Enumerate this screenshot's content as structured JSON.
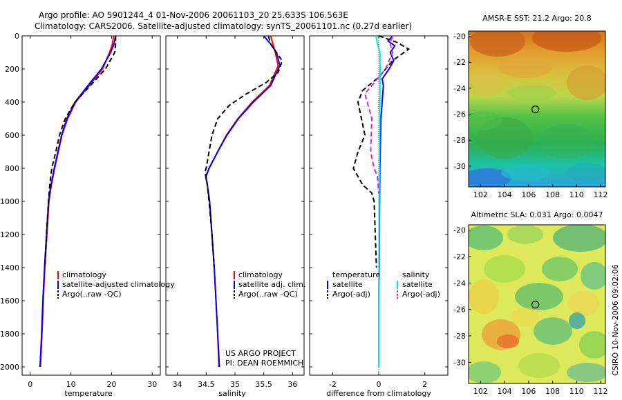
{
  "header": {
    "line1": "Argo profile: AO 5901244_4 01-Nov-2006 20061103_20 25.633S 106.563E",
    "line2": "Climatology: CARS2006. Satellite-adjusted climatology: synTS_20061101.nc (0.27d earlier)"
  },
  "footer": {
    "project": "US ARGO PROJECT",
    "pi": "PI: DEAN ROEMMICH",
    "stamp": "CSIRO 10-Nov-2006 09:02:06"
  },
  "colors": {
    "climatology": "#ff0000",
    "satellite": "#0000ff",
    "argo": "#000000",
    "sal_satellite": "#00e5e5",
    "sal_argo": "#e020d0"
  },
  "chart_data": [
    {
      "type": "line",
      "title": "",
      "xlabel": "temperature",
      "ylabel": "",
      "xlim": [
        -2,
        32
      ],
      "ylim": [
        0,
        2050
      ],
      "y_inverted": true,
      "x_ticks": [
        "0",
        "10",
        "20",
        "30"
      ],
      "y_ticks": [
        "0",
        "200",
        "400",
        "600",
        "800",
        "1000",
        "1200",
        "1400",
        "1600",
        "1800",
        "2000"
      ],
      "legend": {
        "placement": "bottom-right",
        "entries": [
          "climatology",
          "satellite-adjusted climatology",
          "Argo(..raw -QC)"
        ]
      },
      "series": [
        {
          "name": "climatology",
          "style": "solid",
          "color": "#ff0000",
          "points": [
            [
              20.5,
              0
            ],
            [
              20.2,
              50
            ],
            [
              19.5,
              100
            ],
            [
              17.8,
              200
            ],
            [
              14.5,
              300
            ],
            [
              11.2,
              400
            ],
            [
              9.2,
              500
            ],
            [
              7.8,
              600
            ],
            [
              6.9,
              700
            ],
            [
              6.0,
              800
            ],
            [
              5.2,
              900
            ],
            [
              4.6,
              1000
            ],
            [
              4.1,
              1200
            ],
            [
              3.6,
              1400
            ],
            [
              3.2,
              1600
            ],
            [
              2.9,
              1800
            ],
            [
              2.5,
              2000
            ]
          ]
        },
        {
          "name": "satellite-adjusted climatology",
          "style": "solid",
          "color": "#0000ff",
          "points": [
            [
              21.0,
              0
            ],
            [
              20.6,
              50
            ],
            [
              19.8,
              100
            ],
            [
              17.5,
              200
            ],
            [
              14.2,
              300
            ],
            [
              11.0,
              400
            ],
            [
              9.0,
              500
            ],
            [
              7.7,
              600
            ],
            [
              6.8,
              700
            ],
            [
              5.9,
              800
            ],
            [
              5.1,
              900
            ],
            [
              4.5,
              1000
            ],
            [
              4.0,
              1200
            ],
            [
              3.5,
              1400
            ],
            [
              3.1,
              1600
            ],
            [
              2.8,
              1800
            ],
            [
              2.4,
              2000
            ]
          ]
        },
        {
          "name": "Argo(..raw -QC)",
          "style": "dashed",
          "color": "#000000",
          "points": [
            [
              21.0,
              0
            ],
            [
              21.0,
              50
            ],
            [
              20.8,
              100
            ],
            [
              18.5,
              200
            ],
            [
              14.8,
              300
            ],
            [
              11.0,
              400
            ],
            [
              8.6,
              500
            ],
            [
              7.2,
              600
            ],
            [
              6.3,
              700
            ],
            [
              5.3,
              800
            ],
            [
              4.8,
              900
            ],
            [
              4.5,
              1000
            ],
            [
              4.0,
              1200
            ],
            [
              3.6,
              1400
            ]
          ]
        }
      ]
    },
    {
      "type": "line",
      "title": "",
      "xlabel": "salinity",
      "ylabel": "",
      "xlim": [
        33.8,
        36.2
      ],
      "ylim": [
        0,
        2050
      ],
      "y_inverted": true,
      "x_ticks": [
        "34",
        "34.5",
        "35",
        "35.5",
        "36"
      ],
      "legend": {
        "placement": "bottom-right",
        "entries": [
          "climatology",
          "satellite adj. clim.",
          "Argo(..raw -QC)"
        ]
      },
      "series": [
        {
          "name": "climatology",
          "style": "solid",
          "color": "#ff0000",
          "points": [
            [
              35.62,
              0
            ],
            [
              35.66,
              50
            ],
            [
              35.7,
              100
            ],
            [
              35.75,
              180
            ],
            [
              35.6,
              300
            ],
            [
              35.3,
              400
            ],
            [
              35.05,
              500
            ],
            [
              34.85,
              600
            ],
            [
              34.7,
              700
            ],
            [
              34.55,
              800
            ],
            [
              34.5,
              850
            ],
            [
              34.52,
              900
            ],
            [
              34.56,
              1000
            ],
            [
              34.6,
              1200
            ],
            [
              34.64,
              1400
            ],
            [
              34.67,
              1600
            ],
            [
              34.7,
              1800
            ],
            [
              34.72,
              2000
            ]
          ]
        },
        {
          "name": "satellite adj. clim.",
          "style": "solid",
          "color": "#0000ff",
          "points": [
            [
              35.5,
              0
            ],
            [
              35.62,
              50
            ],
            [
              35.72,
              100
            ],
            [
              35.78,
              180
            ],
            [
              35.62,
              300
            ],
            [
              35.32,
              400
            ],
            [
              35.06,
              500
            ],
            [
              34.86,
              600
            ],
            [
              34.7,
              700
            ],
            [
              34.55,
              800
            ],
            [
              34.49,
              850
            ],
            [
              34.52,
              900
            ],
            [
              34.56,
              1000
            ],
            [
              34.6,
              1200
            ],
            [
              34.64,
              1400
            ],
            [
              34.67,
              1600
            ],
            [
              34.7,
              1800
            ],
            [
              34.73,
              2000
            ]
          ]
        },
        {
          "name": "Argo(..raw -QC)",
          "style": "dashed",
          "color": "#000000",
          "points": [
            [
              35.58,
              0
            ],
            [
              35.62,
              50
            ],
            [
              35.82,
              150
            ],
            [
              35.75,
              220
            ],
            [
              35.55,
              280
            ],
            [
              35.2,
              350
            ],
            [
              34.9,
              420
            ],
            [
              34.7,
              500
            ],
            [
              34.6,
              600
            ],
            [
              34.55,
              700
            ],
            [
              34.5,
              800
            ],
            [
              34.48,
              820
            ],
            [
              34.52,
              900
            ],
            [
              34.55,
              1000
            ],
            [
              34.6,
              1200
            ],
            [
              34.64,
              1400
            ]
          ]
        }
      ]
    },
    {
      "type": "line",
      "title": "",
      "xlabel": "difference from climatology",
      "ylabel": "",
      "xlim": [
        -3,
        3
      ],
      "ylim": [
        0,
        2050
      ],
      "y_inverted": true,
      "x_ticks": [
        "-2",
        "0",
        "2"
      ],
      "legend": {
        "placement": "bottom",
        "temperature_header": "temperature",
        "salinity_header": "salinity",
        "entries": [
          "satellite",
          "Argo(-adj)",
          "satellite",
          "Argo(-adj)"
        ]
      },
      "series": [
        {
          "name": "temperature satellite",
          "style": "solid",
          "color": "#0000ff",
          "points": [
            [
              0.6,
              0
            ],
            [
              0.4,
              30
            ],
            [
              0.7,
              60
            ],
            [
              0.5,
              100
            ],
            [
              0.65,
              150
            ],
            [
              0.45,
              200
            ],
            [
              0.15,
              260
            ],
            [
              0.2,
              300
            ],
            [
              0.1,
              500
            ],
            [
              0.05,
              800
            ],
            [
              0.04,
              1000
            ],
            [
              0.02,
              1400
            ],
            [
              0.0,
              1600
            ],
            [
              0.0,
              2000
            ]
          ]
        },
        {
          "name": "temperature Argo(-adj)",
          "style": "dashed",
          "color": "#000000",
          "points": [
            [
              0.0,
              0
            ],
            [
              0.8,
              40
            ],
            [
              1.3,
              80
            ],
            [
              0.6,
              150
            ],
            [
              0.0,
              250
            ],
            [
              -0.7,
              330
            ],
            [
              -0.9,
              400
            ],
            [
              -0.75,
              500
            ],
            [
              -0.6,
              600
            ],
            [
              -0.9,
              700
            ],
            [
              -1.1,
              800
            ],
            [
              -0.7,
              900
            ],
            [
              -0.3,
              950
            ],
            [
              -0.2,
              1000
            ],
            [
              -0.15,
              1200
            ],
            [
              -0.1,
              1400
            ]
          ]
        },
        {
          "name": "salinity satellite",
          "style": "solid",
          "color": "#00e5e5",
          "points": [
            [
              -0.12,
              0
            ],
            [
              -0.05,
              50
            ],
            [
              0.05,
              100
            ],
            [
              0.06,
              200
            ],
            [
              0.05,
              400
            ],
            [
              0.04,
              700
            ],
            [
              0.02,
              1000
            ],
            [
              0.01,
              1400
            ],
            [
              0.0,
              1700
            ],
            [
              0.0,
              2000
            ]
          ]
        },
        {
          "name": "salinity Argo(-adj)",
          "style": "dashed",
          "color": "#e020d0",
          "points": [
            [
              0.6,
              0
            ],
            [
              0.5,
              50
            ],
            [
              0.6,
              100
            ],
            [
              0.3,
              200
            ],
            [
              -0.3,
              300
            ],
            [
              -0.6,
              350
            ],
            [
              -0.4,
              450
            ],
            [
              -0.3,
              500
            ],
            [
              -0.35,
              700
            ],
            [
              -0.2,
              800
            ],
            [
              -0.05,
              850
            ],
            [
              0.0,
              950
            ]
          ]
        }
      ]
    },
    {
      "type": "heatmap",
      "title": "AMSR-E SST: 21.2 Argo: 20.8",
      "xlim": [
        101,
        112.4
      ],
      "ylim": [
        -31.6,
        -19.6
      ],
      "x_ticks": [
        "102",
        "104",
        "106",
        "108",
        "110",
        "112"
      ],
      "y_ticks": [
        "-20",
        "-22",
        "-24",
        "-26",
        "-28",
        "-30"
      ],
      "marker": {
        "lon": 106.563,
        "lat": -25.633
      }
    },
    {
      "type": "heatmap",
      "title": "Altimetric SLA: 0.031 Argo: 0.0047",
      "xlim": [
        101,
        112.4
      ],
      "ylim": [
        -31.6,
        -19.6
      ],
      "x_ticks": [
        "102",
        "104",
        "106",
        "108",
        "110",
        "112"
      ],
      "y_ticks": [
        "-20",
        "-22",
        "-24",
        "-26",
        "-28",
        "-30"
      ],
      "marker": {
        "lon": 106.563,
        "lat": -25.633
      }
    }
  ]
}
